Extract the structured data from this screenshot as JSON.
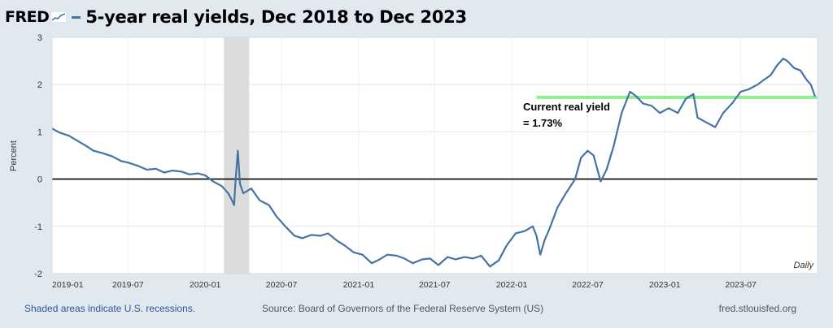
{
  "header": {
    "logo": "FRED",
    "title": "5-year real yields, Dec 2018 to Dec 2023"
  },
  "colors": {
    "series": "#4572a7",
    "current_line": "#90ee90",
    "recession": "#dcdcdc",
    "background": "#e1e9f0",
    "plot_background": "#ffffff",
    "footer_link": "#2f5597"
  },
  "chart_data": {
    "type": "line",
    "title": "5-year real yields, Dec 2018 to Dec 2023",
    "ylabel": "Percent",
    "xlabel": "",
    "frequency_label": "Daily",
    "xlim": [
      "2019-01-01",
      "2023-12-31"
    ],
    "ylim": [
      -2,
      3
    ],
    "y_ticks": [
      "3",
      "2",
      "1",
      "0",
      "-1",
      "-2"
    ],
    "x_ticks": [
      "2019-01",
      "2019-07",
      "2020-01",
      "2020-07",
      "2021-01",
      "2021-07",
      "2022-01",
      "2022-07",
      "2023-01",
      "2023-07"
    ],
    "recession": {
      "start": "2020-02-15",
      "end": "2020-04-15"
    },
    "reference_lines": [
      {
        "y": 0,
        "color": "#000000"
      },
      {
        "y": 1.73,
        "color": "#90ee90",
        "start": "2022-03-01",
        "end": "2023-12-31"
      }
    ],
    "annotations": [
      {
        "line1": "Current real yield",
        "line2": "= 1.73%"
      }
    ],
    "series": [
      {
        "values": [
          [
            "2019-01-01",
            1.07
          ],
          [
            "2019-01-20",
            0.98
          ],
          [
            "2019-02-10",
            0.92
          ],
          [
            "2019-03-01",
            0.82
          ],
          [
            "2019-03-20",
            0.72
          ],
          [
            "2019-04-10",
            0.6
          ],
          [
            "2019-05-01",
            0.55
          ],
          [
            "2019-05-25",
            0.48
          ],
          [
            "2019-06-15",
            0.38
          ],
          [
            "2019-07-01",
            0.35
          ],
          [
            "2019-07-25",
            0.28
          ],
          [
            "2019-08-15",
            0.2
          ],
          [
            "2019-09-05",
            0.22
          ],
          [
            "2019-09-25",
            0.14
          ],
          [
            "2019-10-15",
            0.18
          ],
          [
            "2019-11-05",
            0.16
          ],
          [
            "2019-11-25",
            0.1
          ],
          [
            "2019-12-15",
            0.12
          ],
          [
            "2020-01-01",
            0.08
          ],
          [
            "2020-01-20",
            -0.05
          ],
          [
            "2020-02-10",
            -0.15
          ],
          [
            "2020-02-25",
            -0.3
          ],
          [
            "2020-03-05",
            -0.45
          ],
          [
            "2020-03-10",
            -0.55
          ],
          [
            "2020-03-13",
            -0.1
          ],
          [
            "2020-03-19",
            0.6
          ],
          [
            "2020-03-24",
            -0.1
          ],
          [
            "2020-04-01",
            -0.3
          ],
          [
            "2020-04-20",
            -0.2
          ],
          [
            "2020-05-10",
            -0.45
          ],
          [
            "2020-06-01",
            -0.55
          ],
          [
            "2020-06-20",
            -0.8
          ],
          [
            "2020-07-10",
            -1.0
          ],
          [
            "2020-08-01",
            -1.2
          ],
          [
            "2020-08-20",
            -1.25
          ],
          [
            "2020-09-10",
            -1.18
          ],
          [
            "2020-10-01",
            -1.2
          ],
          [
            "2020-10-20",
            -1.15
          ],
          [
            "2020-11-10",
            -1.3
          ],
          [
            "2020-12-01",
            -1.42
          ],
          [
            "2020-12-20",
            -1.55
          ],
          [
            "2021-01-10",
            -1.6
          ],
          [
            "2021-02-01",
            -1.78
          ],
          [
            "2021-02-20",
            -1.7
          ],
          [
            "2021-03-10",
            -1.6
          ],
          [
            "2021-04-01",
            -1.62
          ],
          [
            "2021-04-20",
            -1.68
          ],
          [
            "2021-05-10",
            -1.78
          ],
          [
            "2021-06-01",
            -1.7
          ],
          [
            "2021-06-20",
            -1.68
          ],
          [
            "2021-07-10",
            -1.82
          ],
          [
            "2021-08-01",
            -1.65
          ],
          [
            "2021-08-20",
            -1.7
          ],
          [
            "2021-09-10",
            -1.65
          ],
          [
            "2021-10-01",
            -1.68
          ],
          [
            "2021-10-20",
            -1.62
          ],
          [
            "2021-11-10",
            -1.85
          ],
          [
            "2021-12-01",
            -1.72
          ],
          [
            "2021-12-20",
            -1.4
          ],
          [
            "2022-01-10",
            -1.15
          ],
          [
            "2022-02-01",
            -1.1
          ],
          [
            "2022-02-20",
            -1.0
          ],
          [
            "2022-03-01",
            -1.2
          ],
          [
            "2022-03-10",
            -1.6
          ],
          [
            "2022-03-20",
            -1.3
          ],
          [
            "2022-04-01",
            -1.05
          ],
          [
            "2022-04-20",
            -0.6
          ],
          [
            "2022-05-10",
            -0.3
          ],
          [
            "2022-06-01",
            0.0
          ],
          [
            "2022-06-15",
            0.45
          ],
          [
            "2022-07-01",
            0.6
          ],
          [
            "2022-07-15",
            0.5
          ],
          [
            "2022-08-01",
            -0.05
          ],
          [
            "2022-08-15",
            0.2
          ],
          [
            "2022-09-01",
            0.7
          ],
          [
            "2022-09-20",
            1.4
          ],
          [
            "2022-10-10",
            1.85
          ],
          [
            "2022-10-25",
            1.75
          ],
          [
            "2022-11-10",
            1.6
          ],
          [
            "2022-12-01",
            1.55
          ],
          [
            "2022-12-20",
            1.4
          ],
          [
            "2023-01-10",
            1.5
          ],
          [
            "2023-02-01",
            1.4
          ],
          [
            "2023-02-20",
            1.7
          ],
          [
            "2023-03-10",
            1.8
          ],
          [
            "2023-03-20",
            1.3
          ],
          [
            "2023-04-10",
            1.2
          ],
          [
            "2023-05-01",
            1.1
          ],
          [
            "2023-05-20",
            1.4
          ],
          [
            "2023-06-10",
            1.6
          ],
          [
            "2023-07-01",
            1.85
          ],
          [
            "2023-07-20",
            1.9
          ],
          [
            "2023-08-10",
            2.0
          ],
          [
            "2023-08-25",
            2.1
          ],
          [
            "2023-09-10",
            2.2
          ],
          [
            "2023-09-25",
            2.4
          ],
          [
            "2023-10-10",
            2.55
          ],
          [
            "2023-10-20",
            2.5
          ],
          [
            "2023-11-05",
            2.35
          ],
          [
            "2023-11-20",
            2.3
          ],
          [
            "2023-12-05",
            2.1
          ],
          [
            "2023-12-15",
            2.0
          ],
          [
            "2023-12-25",
            1.75
          ]
        ]
      }
    ]
  },
  "footer": {
    "recession_note": "Shaded areas indicate U.S. recessions.",
    "source": "Source: Board of Governors of the Federal Reserve System (US)",
    "site": "fred.stlouisfed.org"
  }
}
